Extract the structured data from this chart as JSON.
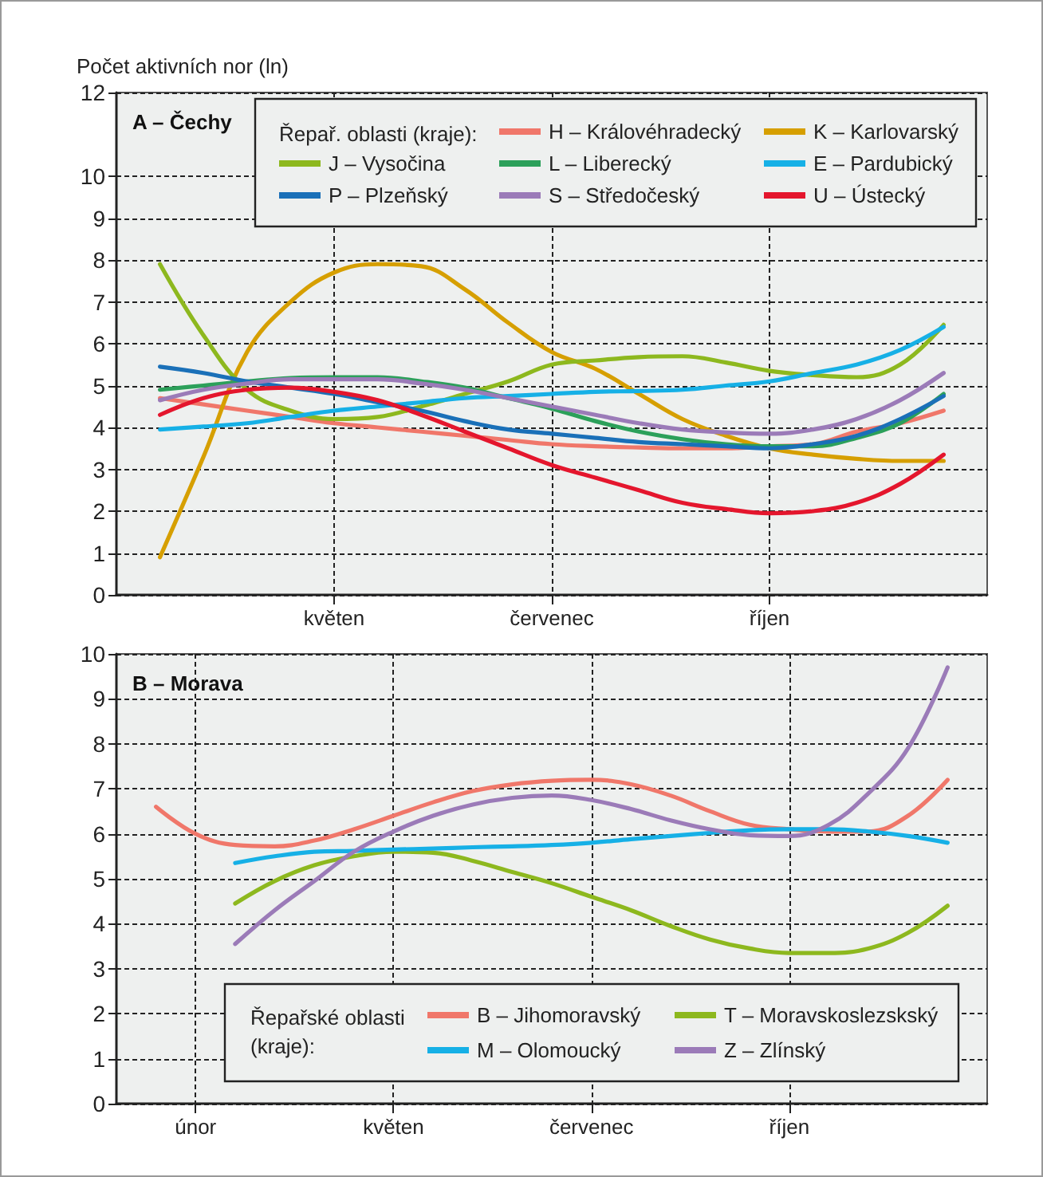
{
  "chart_data": [
    {
      "type": "line",
      "title": "A – Čechy",
      "ylabel": "Počet aktivních nor (ln)",
      "legend_title": "Řepař. oblasti (kraje):",
      "categories": [
        null,
        null,
        null,
        null,
        null,
        "květen",
        null,
        null,
        null,
        null,
        "červenec",
        null,
        null,
        null,
        null,
        "říjen",
        null,
        null,
        null,
        null,
        null
      ],
      "ylim": [
        0,
        12
      ],
      "yticks": [
        0,
        1,
        2,
        3,
        4,
        5,
        6,
        7,
        8,
        9,
        10,
        12
      ],
      "grid": true,
      "legend": "top",
      "marker": "none",
      "series": [
        {
          "name": "H – Královéhradecký",
          "color": "#f0776a",
          "values": [
            null,
            4.7,
            4.55,
            4.4,
            4.25,
            4.1,
            4.0,
            3.9,
            3.8,
            3.7,
            3.6,
            3.55,
            3.52,
            3.5,
            3.5,
            3.55,
            3.6,
            3.9,
            4.1,
            4.4,
            null
          ]
        },
        {
          "name": "K – Karlovarský",
          "color": "#d69f00",
          "values": [
            null,
            0.9,
            3.3,
            5.8,
            7.0,
            7.7,
            7.9,
            7.85,
            7.3,
            6.5,
            5.8,
            5.4,
            4.8,
            4.2,
            3.8,
            3.5,
            3.35,
            3.25,
            3.2,
            3.2,
            null
          ]
        },
        {
          "name": "J – Vysočina",
          "color": "#8db81e",
          "values": [
            null,
            7.9,
            6.2,
            4.9,
            4.4,
            4.2,
            4.25,
            4.5,
            4.8,
            5.1,
            5.5,
            5.6,
            5.68,
            5.7,
            5.55,
            5.35,
            5.25,
            5.2,
            5.5,
            6.45,
            null
          ]
        },
        {
          "name": "L – Liberecký",
          "color": "#2ca05a",
          "values": [
            null,
            4.9,
            5.0,
            5.1,
            5.18,
            5.2,
            5.2,
            5.1,
            4.95,
            4.7,
            4.45,
            4.15,
            3.9,
            3.72,
            3.6,
            3.55,
            3.55,
            3.75,
            4.1,
            4.8,
            null
          ]
        },
        {
          "name": "E – Pardubický",
          "color": "#16b0e6",
          "values": [
            null,
            3.95,
            4.02,
            4.1,
            4.25,
            4.4,
            4.5,
            4.6,
            4.7,
            4.75,
            4.8,
            4.85,
            4.87,
            4.9,
            5.0,
            5.1,
            5.3,
            5.5,
            5.85,
            6.4,
            null
          ]
        },
        {
          "name": "P – Plzeňský",
          "color": "#1a70b8",
          "values": [
            null,
            5.45,
            5.3,
            5.1,
            4.95,
            4.8,
            4.6,
            4.4,
            4.15,
            3.95,
            3.85,
            3.75,
            3.65,
            3.6,
            3.55,
            3.5,
            3.6,
            3.8,
            4.2,
            4.75,
            null
          ]
        },
        {
          "name": "S – Středočeský",
          "color": "#9b7bb8",
          "values": [
            null,
            4.65,
            4.9,
            5.05,
            5.15,
            5.15,
            5.15,
            5.05,
            4.9,
            4.7,
            4.5,
            4.3,
            4.1,
            3.95,
            3.88,
            3.85,
            3.95,
            4.2,
            4.65,
            5.3,
            null
          ]
        },
        {
          "name": "U – Ústecký",
          "color": "#e4162d",
          "values": [
            null,
            4.3,
            4.7,
            4.9,
            4.95,
            4.85,
            4.65,
            4.3,
            3.9,
            3.5,
            3.1,
            2.8,
            2.5,
            2.2,
            2.05,
            1.95,
            2.0,
            2.2,
            2.65,
            3.35,
            null
          ]
        }
      ]
    },
    {
      "type": "line",
      "title": "B – Morava",
      "legend_title": "Řepařské oblasti (kraje):",
      "categories": [
        null,
        null,
        "únor",
        null,
        null,
        null,
        null,
        "květen",
        null,
        null,
        null,
        null,
        "červenec",
        null,
        null,
        null,
        null,
        "říjen",
        null,
        null,
        null,
        null,
        null
      ],
      "ylim": [
        0,
        10
      ],
      "yticks": [
        0,
        1,
        2,
        3,
        4,
        5,
        6,
        7,
        8,
        9,
        10
      ],
      "grid": true,
      "legend": "bottom",
      "marker": "none",
      "series": [
        {
          "name": "B – Jihomoravský",
          "color": "#f0776a",
          "values": [
            null,
            6.6,
            6.0,
            5.75,
            5.72,
            5.85,
            6.1,
            6.4,
            6.7,
            6.95,
            7.1,
            7.18,
            7.2,
            7.1,
            6.85,
            6.5,
            6.2,
            6.1,
            6.05,
            6.05,
            6.4,
            7.2,
            null
          ]
        },
        {
          "name": "T – Moravskoslezskský",
          "color": "#8db81e",
          "values": [
            null,
            null,
            null,
            4.45,
            4.95,
            5.3,
            5.5,
            5.6,
            5.58,
            5.4,
            5.15,
            4.9,
            4.6,
            4.3,
            3.95,
            3.65,
            3.45,
            3.35,
            3.35,
            3.45,
            3.8,
            4.4,
            null
          ]
        },
        {
          "name": "M – Olomoucký",
          "color": "#16b0e6",
          "values": [
            null,
            null,
            null,
            5.35,
            5.5,
            5.6,
            5.62,
            5.65,
            5.67,
            5.7,
            5.72,
            5.75,
            5.8,
            5.88,
            5.95,
            6.02,
            6.08,
            6.1,
            6.1,
            6.05,
            5.95,
            5.8,
            null
          ]
        },
        {
          "name": "Z – Zlínský",
          "color": "#9b7bb8",
          "values": [
            null,
            null,
            null,
            3.55,
            4.3,
            4.95,
            5.6,
            6.05,
            6.4,
            6.65,
            6.8,
            6.85,
            6.75,
            6.55,
            6.3,
            6.1,
            5.97,
            5.95,
            6.2,
            6.9,
            7.9,
            9.7,
            null
          ]
        }
      ]
    }
  ]
}
